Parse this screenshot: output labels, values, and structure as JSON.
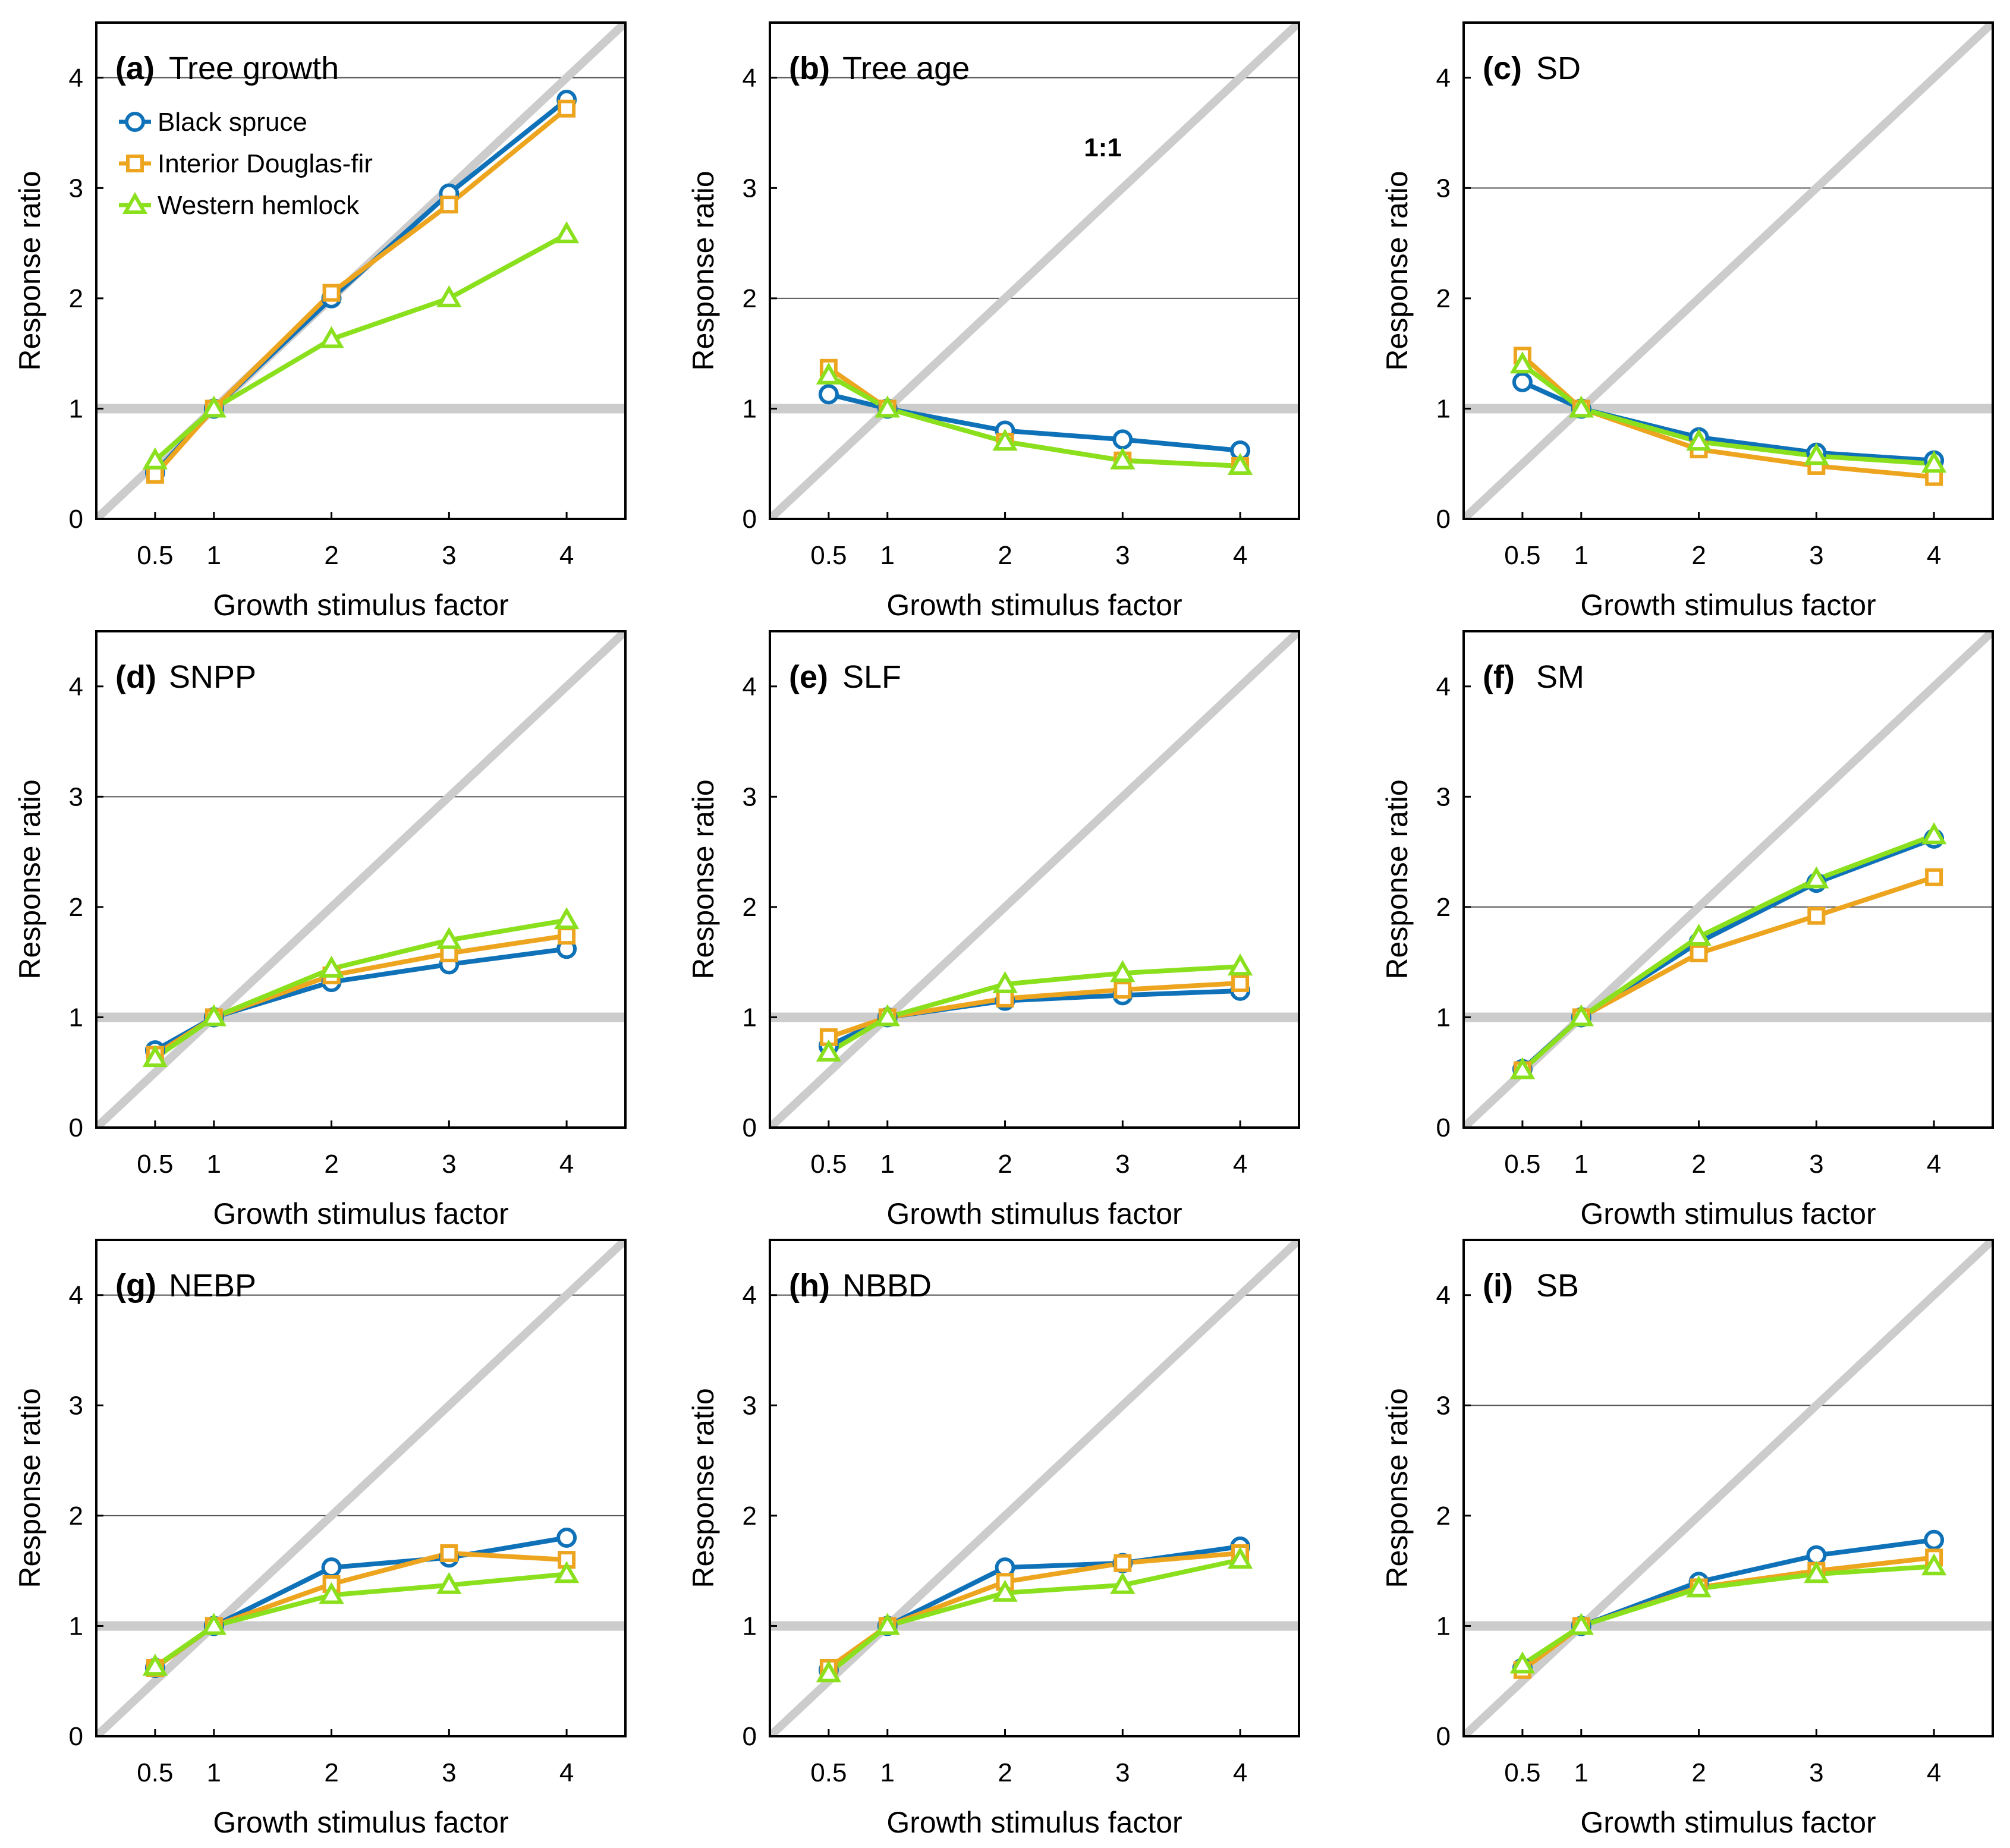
{
  "colors": {
    "black_spruce": "#0f72b8",
    "interior_douglas_fir": "#eda51f",
    "western_hemlock": "#8ae01d",
    "reference_lines": "#cccccc",
    "grid_lines": "#555555"
  },
  "legend": [
    {
      "name": "Black spruce",
      "marker": "circle"
    },
    {
      "name": "Interior Douglas-fir",
      "marker": "square"
    },
    {
      "name": "Western hemlock",
      "marker": "triangle"
    }
  ],
  "one_to_one_label": "1:1",
  "chart_data": [
    {
      "type": "line",
      "letter": "(a)",
      "title": "Tree growth",
      "xlabel": "Growth stimulus factor",
      "ylabel": "Response ratio",
      "x": [
        0.5,
        1,
        2,
        3,
        4
      ],
      "xticks": [
        "0.5",
        "1",
        "2",
        "3",
        "4"
      ],
      "xlim": [
        0,
        4.5
      ],
      "yticks": [
        "0",
        "1",
        "2",
        "3",
        "4"
      ],
      "ylim": [
        0,
        4.5
      ],
      "gridline": 4,
      "series": [
        {
          "name": "Black spruce",
          "values": [
            0.42,
            1.0,
            2.0,
            2.95,
            3.8
          ]
        },
        {
          "name": "Interior Douglas-fir",
          "values": [
            0.4,
            1.0,
            2.05,
            2.85,
            3.72
          ]
        },
        {
          "name": "Western hemlock",
          "values": [
            0.53,
            1.0,
            1.63,
            2.0,
            2.58
          ]
        }
      ]
    },
    {
      "type": "line",
      "letter": "(b)",
      "title": "Tree age",
      "xlabel": "Growth stimulus factor",
      "ylabel": "Response ratio",
      "x": [
        0.5,
        1,
        2,
        3,
        4
      ],
      "xticks": [
        "0.5",
        "1",
        "2",
        "3",
        "4"
      ],
      "xlim": [
        0,
        4.5
      ],
      "yticks": [
        "0",
        "1",
        "2",
        "3",
        "4"
      ],
      "ylim": [
        0,
        4.5
      ],
      "gridlines": [
        2,
        4
      ],
      "annotation": "1:1",
      "series": [
        {
          "name": "Black spruce",
          "values": [
            1.13,
            1.0,
            0.8,
            0.72,
            0.62
          ]
        },
        {
          "name": "Interior Douglas-fir",
          "values": [
            1.37,
            1.0,
            0.7,
            0.53,
            0.48
          ]
        },
        {
          "name": "Western hemlock",
          "values": [
            1.3,
            1.0,
            0.7,
            0.53,
            0.48
          ]
        }
      ]
    },
    {
      "type": "line",
      "letter": "(c)",
      "title": "SD",
      "xlabel": "Growth stimulus factor",
      "ylabel": "Response ratio",
      "x": [
        0.5,
        1,
        2,
        3,
        4
      ],
      "xticks": [
        "0.5",
        "1",
        "2",
        "3",
        "4"
      ],
      "xlim": [
        0,
        4.5
      ],
      "yticks": [
        "0",
        "1",
        "2",
        "3",
        "4"
      ],
      "ylim": [
        0,
        4.5
      ],
      "gridline": 3,
      "series": [
        {
          "name": "Black spruce",
          "values": [
            1.24,
            1.0,
            0.74,
            0.6,
            0.53
          ]
        },
        {
          "name": "Interior Douglas-fir",
          "values": [
            1.48,
            1.0,
            0.63,
            0.48,
            0.38
          ]
        },
        {
          "name": "Western hemlock",
          "values": [
            1.4,
            1.0,
            0.7,
            0.57,
            0.5
          ]
        }
      ]
    },
    {
      "type": "line",
      "letter": "(d)",
      "title": "SNPP",
      "xlabel": "Growth stimulus factor",
      "ylabel": "Response ratio",
      "x": [
        0.5,
        1,
        2,
        3,
        4
      ],
      "xticks": [
        "0.5",
        "1",
        "2",
        "3",
        "4"
      ],
      "xlim": [
        0,
        4.5
      ],
      "yticks": [
        "0",
        "1",
        "2",
        "3",
        "4"
      ],
      "ylim": [
        0,
        4.5
      ],
      "gridline": 3,
      "series": [
        {
          "name": "Black spruce",
          "values": [
            0.7,
            1.0,
            1.32,
            1.48,
            1.62
          ]
        },
        {
          "name": "Interior Douglas-fir",
          "values": [
            0.66,
            1.0,
            1.38,
            1.58,
            1.74
          ]
        },
        {
          "name": "Western hemlock",
          "values": [
            0.63,
            1.0,
            1.44,
            1.7,
            1.88
          ]
        }
      ]
    },
    {
      "type": "line",
      "letter": "(e)",
      "title": "SLF",
      "xlabel": "Growth stimulus factor",
      "ylabel": "Response ratio",
      "x": [
        0.5,
        1,
        2,
        3,
        4
      ],
      "xticks": [
        "0.5",
        "1",
        "2",
        "3",
        "4"
      ],
      "xlim": [
        0,
        4.5
      ],
      "yticks": [
        "0",
        "1",
        "2",
        "3",
        "4"
      ],
      "ylim": [
        0,
        4.5
      ],
      "series": [
        {
          "name": "Black spruce",
          "values": [
            0.74,
            1.0,
            1.15,
            1.2,
            1.24
          ]
        },
        {
          "name": "Interior Douglas-fir",
          "values": [
            0.82,
            1.0,
            1.17,
            1.25,
            1.31
          ]
        },
        {
          "name": "Western hemlock",
          "values": [
            0.68,
            1.0,
            1.3,
            1.4,
            1.46
          ]
        }
      ]
    },
    {
      "type": "line",
      "letter": "(f)",
      "title": "SM",
      "xlabel": "Growth stimulus factor",
      "ylabel": "Response ratio",
      "x": [
        0.5,
        1,
        2,
        3,
        4
      ],
      "xticks": [
        "0.5",
        "1",
        "2",
        "3",
        "4"
      ],
      "xlim": [
        0,
        4.5
      ],
      "yticks": [
        "0",
        "1",
        "2",
        "3",
        "4"
      ],
      "ylim": [
        0,
        4.5
      ],
      "gridline": 2,
      "series": [
        {
          "name": "Black spruce",
          "values": [
            0.53,
            1.0,
            1.68,
            2.22,
            2.62
          ]
        },
        {
          "name": "Interior Douglas-fir",
          "values": [
            0.52,
            1.0,
            1.58,
            1.92,
            2.27
          ]
        },
        {
          "name": "Western hemlock",
          "values": [
            0.52,
            1.0,
            1.73,
            2.25,
            2.65
          ]
        }
      ]
    },
    {
      "type": "line",
      "letter": "(g)",
      "title": "NEBP",
      "xlabel": "Growth stimulus factor",
      "ylabel": "Response ratio",
      "x": [
        0.5,
        1,
        2,
        3,
        4
      ],
      "xticks": [
        "0.5",
        "1",
        "2",
        "3",
        "4"
      ],
      "xlim": [
        0,
        4.5
      ],
      "yticks": [
        "0",
        "1",
        "2",
        "3",
        "4"
      ],
      "ylim": [
        0,
        4.5
      ],
      "gridlines": [
        2,
        4
      ],
      "series": [
        {
          "name": "Black spruce",
          "values": [
            0.62,
            1.0,
            1.53,
            1.62,
            1.8
          ]
        },
        {
          "name": "Interior Douglas-fir",
          "values": [
            0.62,
            1.0,
            1.38,
            1.66,
            1.6
          ]
        },
        {
          "name": "Western hemlock",
          "values": [
            0.63,
            1.0,
            1.28,
            1.37,
            1.47
          ]
        }
      ]
    },
    {
      "type": "line",
      "letter": "(h)",
      "title": "NBBD",
      "xlabel": "Growth stimulus factor",
      "ylabel": "Response ratio",
      "x": [
        0.5,
        1,
        2,
        3,
        4
      ],
      "xticks": [
        "0.5",
        "1",
        "2",
        "3",
        "4"
      ],
      "xlim": [
        0,
        4.5
      ],
      "yticks": [
        "0",
        "1",
        "2",
        "3",
        "4"
      ],
      "ylim": [
        0,
        4.5
      ],
      "gridline": 4,
      "series": [
        {
          "name": "Black spruce",
          "values": [
            0.6,
            1.0,
            1.53,
            1.57,
            1.72
          ]
        },
        {
          "name": "Interior Douglas-fir",
          "values": [
            0.62,
            1.0,
            1.4,
            1.57,
            1.66
          ]
        },
        {
          "name": "Western hemlock",
          "values": [
            0.57,
            1.0,
            1.3,
            1.37,
            1.6
          ]
        }
      ]
    },
    {
      "type": "line",
      "letter": "(i)",
      "title": "SB",
      "xlabel": "Growth stimulus factor",
      "ylabel": "Response ratio",
      "x": [
        0.5,
        1,
        2,
        3,
        4
      ],
      "xticks": [
        "0.5",
        "1",
        "2",
        "3",
        "4"
      ],
      "xlim": [
        0,
        4.5
      ],
      "yticks": [
        "0",
        "1",
        "2",
        "3",
        "4"
      ],
      "ylim": [
        0,
        4.5
      ],
      "gridline": 3,
      "series": [
        {
          "name": "Black spruce",
          "values": [
            0.62,
            1.0,
            1.4,
            1.64,
            1.78
          ]
        },
        {
          "name": "Interior Douglas-fir",
          "values": [
            0.6,
            1.0,
            1.35,
            1.5,
            1.62
          ]
        },
        {
          "name": "Western hemlock",
          "values": [
            0.65,
            1.0,
            1.34,
            1.47,
            1.54
          ]
        }
      ]
    }
  ]
}
